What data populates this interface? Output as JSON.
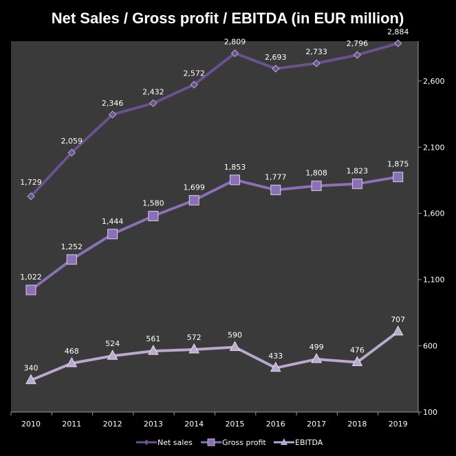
{
  "chart_data": {
    "type": "line",
    "title": "Net Sales / Gross profit / EBITDA (in EUR million)",
    "categories": [
      "2010",
      "2011",
      "2012",
      "2013",
      "2014",
      "2015",
      "2016",
      "2017",
      "2018",
      "2019"
    ],
    "y_axis": {
      "position": "right",
      "min": 100,
      "max": 2900,
      "ticks": [
        100,
        600,
        1100,
        1600,
        2100,
        2600
      ],
      "tick_labels": [
        "100",
        "600",
        "1,100",
        "1,600",
        "2,100",
        "2,600"
      ]
    },
    "grid": false,
    "legend_position": "bottom",
    "series": [
      {
        "name": "Net sales",
        "marker": "diamond",
        "color": "#6a5290",
        "values": [
          1729,
          2059,
          2346,
          2432,
          2572,
          2809,
          2693,
          2733,
          2796,
          2884
        ],
        "labels": [
          "1,729",
          "2,059",
          "2,346",
          "2,432",
          "2,572",
          "2,809",
          "2,693",
          "2,733",
          "2,796",
          "2,884"
        ]
      },
      {
        "name": "Gross profit",
        "marker": "square",
        "color": "#8a70b6",
        "values": [
          1022,
          1252,
          1444,
          1580,
          1699,
          1853,
          1777,
          1808,
          1823,
          1875
        ],
        "labels": [
          "1,022",
          "1,252",
          "1,444",
          "1,580",
          "1,699",
          "1,853",
          "1,777",
          "1,808",
          "1,823",
          "1,875"
        ]
      },
      {
        "name": "EBITDA",
        "marker": "triangle",
        "color": "#b9a9cf",
        "values": [
          340,
          468,
          524,
          561,
          572,
          590,
          433,
          499,
          476,
          707
        ],
        "labels": [
          "340",
          "468",
          "524",
          "561",
          "572",
          "590",
          "433",
          "499",
          "476",
          "707"
        ]
      }
    ]
  },
  "colors": {
    "background": "#000000",
    "plot_area": "#3a3a3a",
    "text": "#ffffff"
  }
}
